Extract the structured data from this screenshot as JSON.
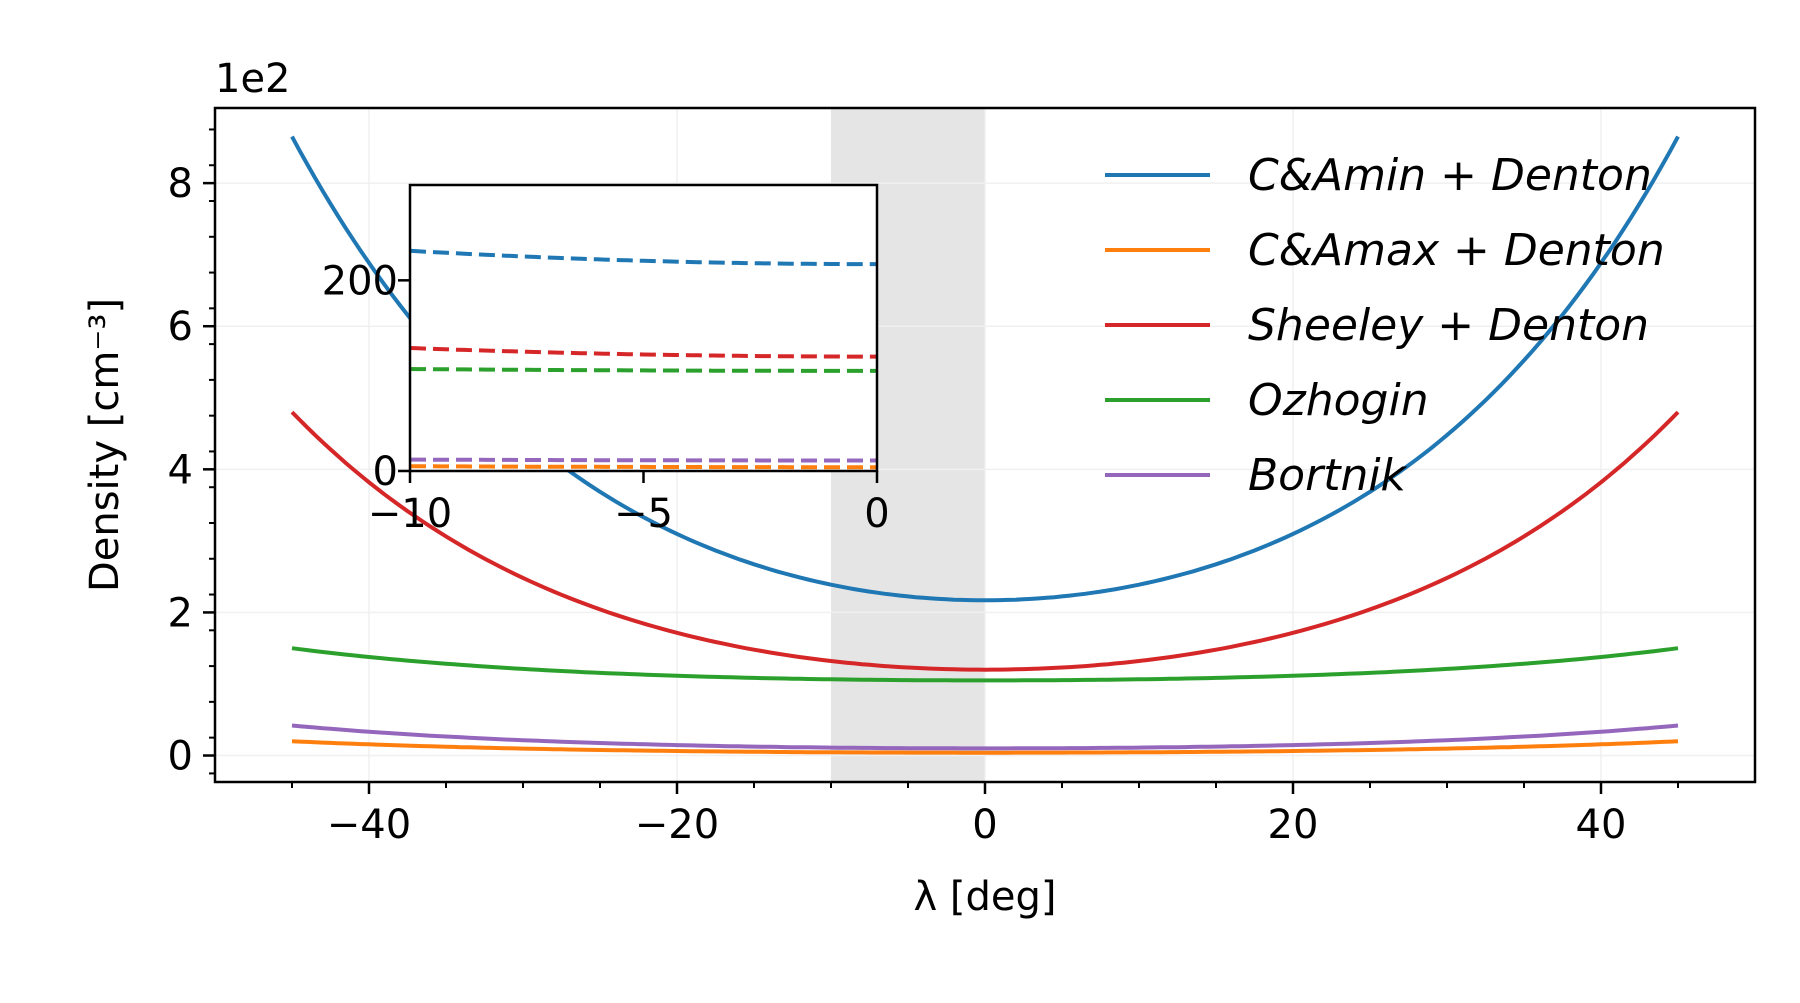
{
  "chart_data": {
    "type": "line",
    "xlabel": "λ [deg]",
    "ylabel": "Density [cm⁻³]",
    "y_offset_label": "1e2",
    "xlim": [
      -50,
      50
    ],
    "ylim": [
      -0.37,
      9.05
    ],
    "y_scale_note": "values in units of 1e2 cm^-3",
    "x_ticks": [
      -40,
      -20,
      0,
      20,
      40
    ],
    "x_tick_labels": [
      "−40",
      "−20",
      "0",
      "20",
      "40"
    ],
    "y_ticks": [
      0,
      2,
      4,
      6,
      8
    ],
    "y_tick_labels": [
      "0",
      "2",
      "4",
      "6",
      "8"
    ],
    "grid": true,
    "legend_position": "top-right",
    "shaded_region": {
      "x_range": [
        -10,
        0
      ],
      "color": "#e5e5e5"
    },
    "series": [
      {
        "name": "C&Amin + Denton",
        "color": "#1f77b4",
        "x_range": [
          -45,
          45
        ],
        "y_at_0": 2.17,
        "y_at_45": 8.65
      },
      {
        "name": "C&Amax + Denton",
        "color": "#ff7f0e",
        "x_range": [
          -45,
          45
        ],
        "y_at_0": 0.04,
        "y_at_45": 0.2
      },
      {
        "name": "Sheeley + Denton",
        "color": "#d62728",
        "x_range": [
          -45,
          45
        ],
        "y_at_0": 1.2,
        "y_at_45": 4.8
      },
      {
        "name": "Ozhogin",
        "color": "#2ca02c",
        "x_range": [
          -45,
          45
        ],
        "y_at_0": 1.05,
        "y_at_45": 1.5
      },
      {
        "name": "Bortnik",
        "color": "#9467bd",
        "x_range": [
          -45,
          45
        ],
        "y_at_0": 0.1,
        "y_at_45": 0.42
      }
    ],
    "inset": {
      "type": "line",
      "line_style": "dashed",
      "xlim": [
        -10,
        0
      ],
      "ylim": [
        0,
        300
      ],
      "x_ticks": [
        -10,
        -5,
        0
      ],
      "x_tick_labels": [
        "−10",
        "−5",
        "0"
      ],
      "y_ticks": [
        0,
        200
      ],
      "y_tick_labels": [
        "0",
        "200"
      ],
      "series": [
        {
          "color": "#1f77b4",
          "y_at_minus10": 231,
          "y_at_0": 217
        },
        {
          "color": "#ff7f0e",
          "y_at_minus10": 5,
          "y_at_0": 4
        },
        {
          "color": "#d62728",
          "y_at_minus10": 129,
          "y_at_0": 120
        },
        {
          "color": "#2ca02c",
          "y_at_minus10": 107,
          "y_at_0": 105
        },
        {
          "color": "#9467bd",
          "y_at_minus10": 12,
          "y_at_0": 11
        }
      ]
    }
  }
}
